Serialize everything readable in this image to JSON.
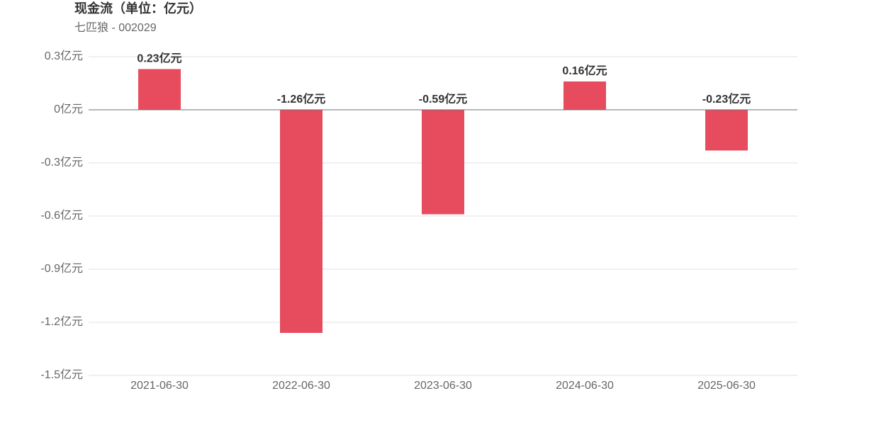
{
  "chart_data": {
    "type": "bar",
    "title": "现金流（单位：亿元）",
    "subtitle": "七匹狼 - 002029",
    "categories": [
      "2021-06-30",
      "2022-06-30",
      "2023-06-30",
      "2024-06-30",
      "2025-06-30"
    ],
    "values": [
      0.23,
      -1.26,
      -0.59,
      0.16,
      -0.23
    ],
    "value_labels": [
      "0.23亿元",
      "-1.26亿元",
      "-0.59亿元",
      "0.16亿元",
      "-0.23亿元"
    ],
    "color": "#e64c5e",
    "ylim": [
      -1.5,
      0.3
    ],
    "yticks": [
      {
        "value": 0.3,
        "label": "0.3亿元"
      },
      {
        "value": 0,
        "label": "0亿元"
      },
      {
        "value": -0.3,
        "label": "-0.3亿元"
      },
      {
        "value": -0.6,
        "label": "-0.6亿元"
      },
      {
        "value": -0.9,
        "label": "-0.9亿元"
      },
      {
        "value": -1.2,
        "label": "-1.2亿元"
      },
      {
        "value": -1.5,
        "label": "-1.5亿元"
      }
    ],
    "grid": true
  }
}
